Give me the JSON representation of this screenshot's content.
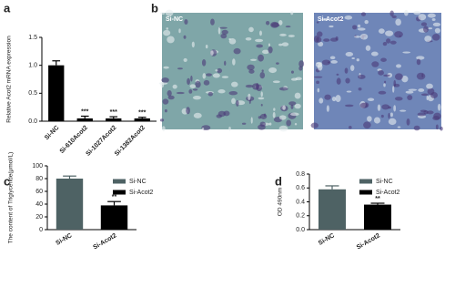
{
  "chart_data": [
    {
      "type": "bar",
      "panel_label": "a",
      "ylabel": "Relative Acot2 mRNA expression",
      "categories": [
        "Si-NC",
        "Si-610Acot2",
        "Si-1027Acot2",
        "Si-1382Acot2"
      ],
      "values": [
        1.0,
        0.05,
        0.05,
        0.05
      ],
      "errors": [
        0.08,
        0.04,
        0.03,
        0.02
      ],
      "value_annotations": [
        null,
        "***",
        "***",
        "***"
      ],
      "colors": [
        "#000000",
        "#000000",
        "#000000",
        "#000000"
      ],
      "ylim": [
        0,
        1.5
      ],
      "yticks": [
        {
          "value": 0,
          "label": "0.0"
        },
        0.5,
        {
          "value": 1,
          "label": "1.0"
        },
        1.5
      ]
    },
    {
      "type": "image",
      "panel_label": "b",
      "captions": [
        "Si-NC",
        "Si-Acot2"
      ]
    },
    {
      "type": "bar",
      "panel_label": "c",
      "ylabel": "The content of Triglyceride(μmol/L)",
      "categories": [
        "Si-NC",
        "Si-Acot2"
      ],
      "values": [
        80,
        38
      ],
      "errors": [
        4,
        6
      ],
      "value_annotations": [
        null,
        "**"
      ],
      "colors": [
        "#4e6264",
        "#000000"
      ],
      "legend": [
        "Si-NC",
        "Si-Acot2"
      ],
      "ylim": [
        0,
        100
      ],
      "yticks": [
        0,
        20,
        40,
        60,
        80,
        100
      ]
    },
    {
      "type": "bar",
      "panel_label": "d",
      "ylabel": "OD 490nm",
      "categories": [
        "Si-NC",
        "Si-Acot2"
      ],
      "values": [
        0.58,
        0.36
      ],
      "errors": [
        0.05,
        0.02
      ],
      "value_annotations": [
        null,
        "**"
      ],
      "colors": [
        "#4e6264",
        "#000000"
      ],
      "legend": [
        "Si-NC",
        "Si-Acot2"
      ],
      "ylim": [
        0,
        0.8
      ],
      "yticks": [
        {
          "value": 0,
          "label": "0.0"
        },
        0.2,
        0.4,
        0.6,
        0.8
      ]
    }
  ]
}
